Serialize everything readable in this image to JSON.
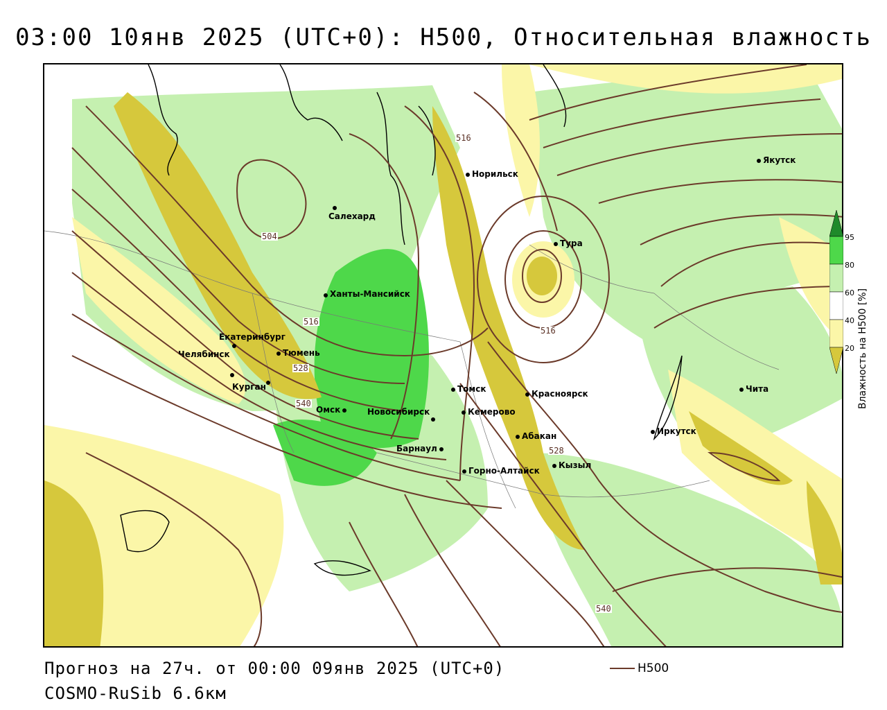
{
  "title": "03:00 10янв 2025 (UTC+0): H500, Относительная влажность",
  "footer": {
    "forecast": "Прогноз на 27ч. от 00:00 09янв 2025 (UTC+0)",
    "model": "COSMO-RuSib 6.6км"
  },
  "key": {
    "h500_label": "H500",
    "line_color": "#6b3a2a"
  },
  "legend": {
    "title": "Влажность на H500 [%]",
    "levels": [
      "20",
      "40",
      "60",
      "80",
      "95"
    ],
    "colors": {
      "band_20_40": "#fbf6a8",
      "band_40_60": "#ffffff",
      "band_60_80": "#c5f0b0",
      "band_80_95": "#4ed84a",
      "band_95": "#1f8a2a",
      "below_20": "#d6c83c"
    }
  },
  "contour_labels": [
    "516",
    "504",
    "516",
    "528",
    "540",
    "516",
    "528",
    "540"
  ],
  "cities": [
    "Норильск",
    "Якутск",
    "Салехард",
    "Тура",
    "Ханты-Мансийск",
    "Екатеринбург",
    "Тюмень",
    "Челябинск",
    "Курган",
    "Омск",
    "Томск",
    "Красноярск",
    "Кемерово",
    "Новосибирск",
    "Абакан",
    "Барнаул",
    "Иркутск",
    "Чита",
    "Кызыл",
    "Горно-Алтайск"
  ]
}
